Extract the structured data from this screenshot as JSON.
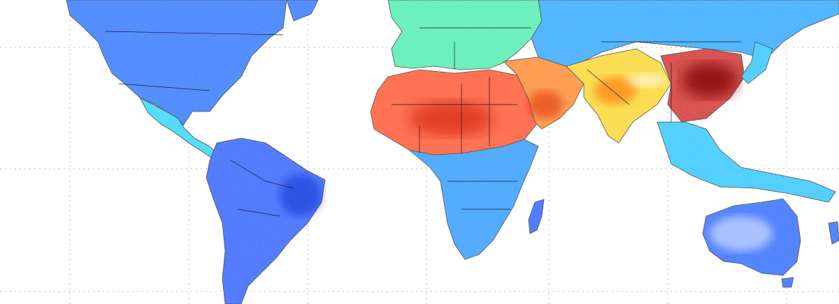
{
  "map": {
    "projection": "equirectangular",
    "grid": "dotted",
    "ocean_color": "#ffffff",
    "land_border_color": "#1a1a1a",
    "colormap": "jet",
    "colormap_stops": [
      "#00008f",
      "#0040ff",
      "#0090ff",
      "#00d8ff",
      "#7fff80",
      "#ffd800",
      "#ff7a00",
      "#ff1a00",
      "#8b0000"
    ],
    "no_data_color": "#ffffff",
    "regions": [
      {
        "name": "north-america",
        "level": 0.22
      },
      {
        "name": "central-america",
        "level": 0.38
      },
      {
        "name": "south-america",
        "level": 0.18
      },
      {
        "name": "africa-south",
        "level": 0.28
      },
      {
        "name": "sahara-sahel",
        "level": 0.8
      },
      {
        "name": "europe",
        "level": 0.45
      },
      {
        "name": "middle-east",
        "level": 0.72
      },
      {
        "name": "russia-north-asia",
        "level": 0.3
      },
      {
        "name": "south-asia",
        "level": 0.62
      },
      {
        "name": "east-china",
        "level": 0.92
      },
      {
        "name": "southeast-asia",
        "level": 0.35
      },
      {
        "name": "australia",
        "level": 0.2
      },
      {
        "name": "madagascar",
        "level": 0.18
      }
    ]
  }
}
